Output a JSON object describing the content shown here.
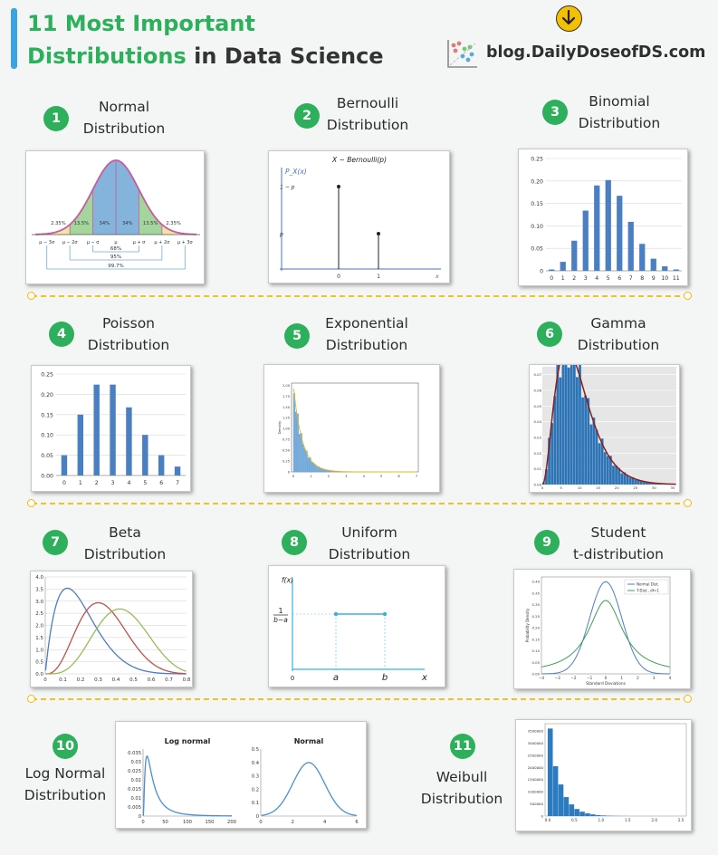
{
  "header": {
    "title_number": "11",
    "title_line1": "Most Important",
    "title_line2_green": "Distributions",
    "title_line2_rest": "in Data Science",
    "brand": "blog.DailyDoseofDS.com",
    "download_icon": "arrow-down-icon",
    "logo_icon": "scatter-logo-icon",
    "accent_color": "#2eaf5c"
  },
  "items": [
    {
      "num": "1",
      "line1": "Normal",
      "line2": "Distribution"
    },
    {
      "num": "2",
      "line1": "Bernoulli",
      "line2": "Distribution"
    },
    {
      "num": "3",
      "line1": "Binomial",
      "line2": "Distribution"
    },
    {
      "num": "4",
      "line1": "Poisson",
      "line2": "Distribution"
    },
    {
      "num": "5",
      "line1": "Exponential",
      "line2": "Distribution"
    },
    {
      "num": "6",
      "line1": "Gamma",
      "line2": "Distribution"
    },
    {
      "num": "7",
      "line1": "Beta",
      "line2": "Distribution"
    },
    {
      "num": "8",
      "line1": "Uniform",
      "line2": "Distribution"
    },
    {
      "num": "9",
      "line1": "Student",
      "line2": "t-distribution"
    },
    {
      "num": "10",
      "line1": "Log Normal",
      "line2": "Distribution"
    },
    {
      "num": "11",
      "line1": "Weibull",
      "line2": "Distribution"
    }
  ],
  "chart_data": [
    {
      "id": "normal",
      "type": "area",
      "x_ticks": [
        "μ − 3σ",
        "μ − 2σ",
        "μ − σ",
        "μ",
        "μ + σ",
        "μ + 2σ",
        "μ + 3σ"
      ],
      "band_labels": [
        "2.35%",
        "13.5%",
        "34%",
        "34%",
        "13.5%",
        "2.35%"
      ],
      "range_labels": [
        "68%",
        "95%",
        "99.7%"
      ]
    },
    {
      "id": "bernoulli",
      "type": "scatter",
      "title": "X ∼ Bernoulli(p)",
      "ylabel": "P_X(x)",
      "x_ticks": [
        "0",
        "1"
      ],
      "x_axis_label": "x",
      "y_ticks": [
        "1 − p",
        "p"
      ],
      "x": [
        0,
        1
      ],
      "y": [
        0.7,
        0.3
      ]
    },
    {
      "id": "binomial",
      "type": "bar",
      "categories": [
        "0",
        "1",
        "2",
        "3",
        "4",
        "5",
        "6",
        "7",
        "8",
        "9",
        "10",
        "11"
      ],
      "values": [
        0.003,
        0.02,
        0.067,
        0.134,
        0.19,
        0.202,
        0.167,
        0.109,
        0.06,
        0.027,
        0.01,
        0.003
      ],
      "y_ticks": [
        "0",
        "0.05",
        "0.10",
        "0.15",
        "0.20",
        "0.25"
      ],
      "ylim": [
        0,
        0.25
      ]
    },
    {
      "id": "poisson",
      "type": "bar",
      "categories": [
        "0",
        "1",
        "2",
        "3",
        "4",
        "5",
        "6",
        "7"
      ],
      "values": [
        0.05,
        0.15,
        0.224,
        0.224,
        0.168,
        0.1,
        0.05,
        0.022
      ],
      "y_ticks": [
        "0.00",
        "0.05",
        "0.10",
        "0.15",
        "0.20",
        "0.25"
      ],
      "ylim": [
        0,
        0.25
      ]
    },
    {
      "id": "exponential",
      "type": "bar",
      "ylabel": "Density",
      "x_ticks": [
        "0",
        "1",
        "2",
        "3",
        "4",
        "5",
        "6",
        "7"
      ],
      "y_ticks": [
        "0",
        "0.25",
        "0.50",
        "0.75",
        "1.00",
        "1.25",
        "1.50",
        "1.75",
        "2.00"
      ],
      "ylim": [
        0,
        2.05
      ],
      "xlim": [
        0,
        7
      ],
      "rate": 2
    },
    {
      "id": "gamma",
      "type": "bar",
      "x_ticks": [
        "0",
        "5",
        "10",
        "15",
        "20",
        "25",
        "30",
        "35"
      ],
      "y_ticks": [
        "0.00",
        "0.01",
        "0.02",
        "0.03",
        "0.04",
        "0.05",
        "0.06",
        "0.07"
      ],
      "ylim": [
        0,
        0.075
      ],
      "xlim": [
        0,
        36
      ],
      "shape": 3.2,
      "scale": 3
    },
    {
      "id": "beta",
      "type": "line",
      "x_ticks": [
        "0",
        "0.1",
        "0.2",
        "0.3",
        "0.4",
        "0.5",
        "0.6",
        "0.7",
        "0.8"
      ],
      "y_ticks": [
        "0.0",
        "0.5",
        "1.0",
        "1.5",
        "2.0",
        "2.5",
        "3.0",
        "3.5",
        "4.0"
      ],
      "ylim": [
        0,
        4
      ],
      "xlim": [
        0,
        0.8
      ],
      "series": [
        {
          "color": "#4a7ec4",
          "peak": [
            0.13,
            3.5
          ],
          "width": 0.21
        },
        {
          "color": "#c0504d",
          "peak": [
            0.3,
            2.92
          ],
          "width": 0.22
        },
        {
          "color": "#9bbb59",
          "peak": [
            0.42,
            2.95
          ],
          "width": 0.24
        }
      ]
    },
    {
      "id": "uniform",
      "type": "line",
      "ylabel": "f(x)",
      "x_ticks": [
        "0",
        "a",
        "b",
        "x"
      ],
      "y_label_num": "1",
      "y_label_den": "b−a"
    },
    {
      "id": "student",
      "type": "line",
      "ylabel": "Probability Density",
      "xlabel": "Standard Deviations",
      "x_ticks": [
        "−4",
        "−3",
        "−2",
        "−1",
        "0",
        "1",
        "2",
        "3",
        "4"
      ],
      "y_ticks": [
        "0.00",
        "0.05",
        "0.10",
        "0.15",
        "0.20",
        "0.25",
        "0.30",
        "0.35",
        "0.40"
      ],
      "ylim": [
        0,
        0.42
      ],
      "xlim": [
        -4,
        4
      ],
      "legend": [
        "Normal Dist.",
        "T-Dist., df=1"
      ],
      "series": [
        {
          "name": "Normal Dist.",
          "color": "#4a7ec4"
        },
        {
          "name": "T-Dist., df=1",
          "color": "#3da054"
        }
      ]
    },
    {
      "id": "lognormal",
      "type": "line",
      "title": "Log normal",
      "x_ticks": [
        "0",
        "50",
        "100",
        "150",
        "200"
      ],
      "y_ticks": [
        "0",
        "0.005",
        "0.01",
        "0.015",
        "0.02",
        "0.025",
        "0.03",
        "0.035"
      ],
      "ylim": [
        0,
        0.037
      ],
      "xlim": [
        0,
        200
      ]
    },
    {
      "id": "normal2",
      "type": "line",
      "title": "Normal",
      "x_ticks": [
        "0",
        "2",
        "4",
        "6"
      ],
      "y_ticks": [
        "0",
        "0.1",
        "0.2",
        "0.3",
        "0.4",
        "0.5"
      ],
      "ylim": [
        0,
        0.5
      ],
      "xlim": [
        0,
        6
      ]
    },
    {
      "id": "weibull",
      "type": "bar",
      "x_ticks": [
        "0.0",
        "0.5",
        "1.0",
        "1.5",
        "2.0",
        "2.5"
      ],
      "y_ticks": [
        "0",
        "500000",
        "1000000",
        "1500000",
        "2000000",
        "2500000",
        "3000000",
        "3500000"
      ],
      "ylim": [
        0,
        3800000
      ],
      "xlim": [
        -0.05,
        2.6
      ],
      "values": [
        3600000,
        2050000,
        1300000,
        780000,
        480000,
        290000,
        180000,
        110000,
        70000,
        40000,
        25000,
        14000,
        8000,
        5000,
        3000
      ]
    }
  ]
}
